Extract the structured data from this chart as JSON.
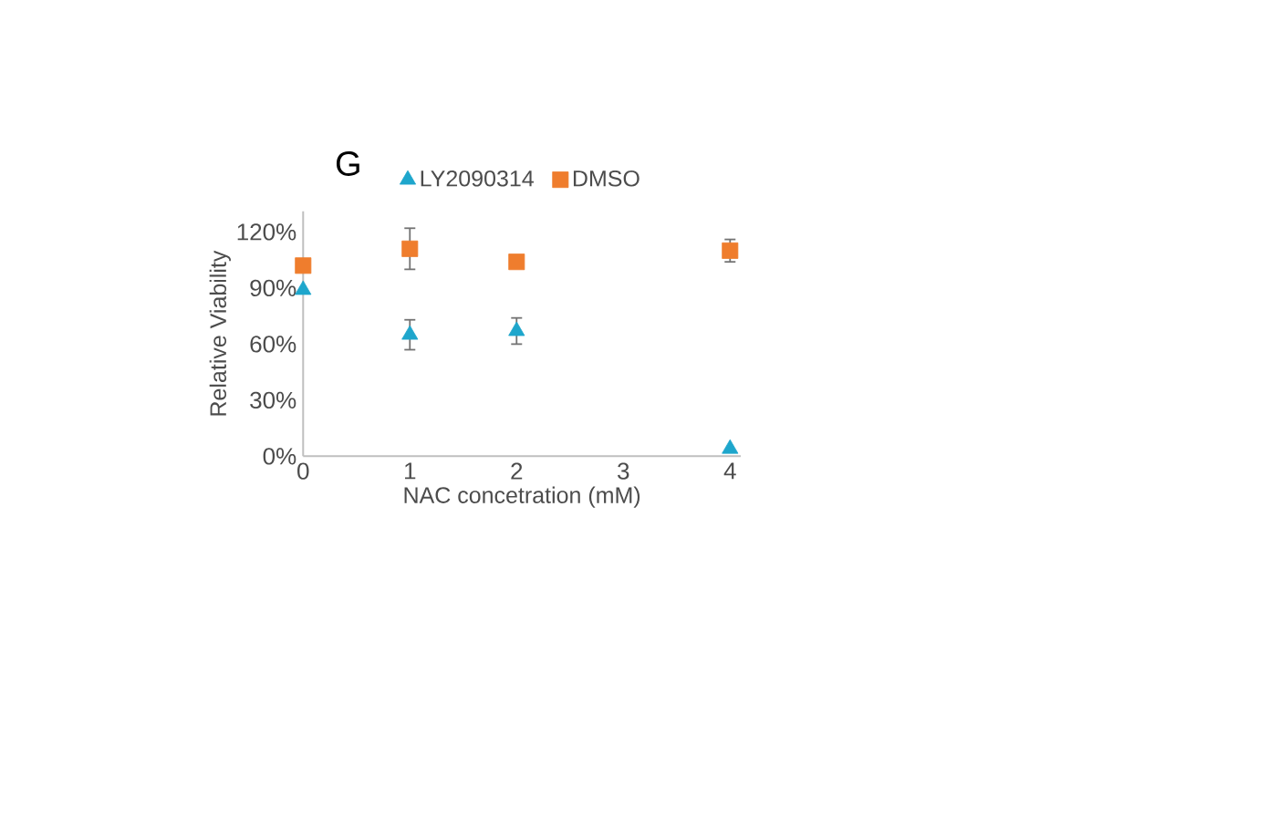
{
  "chart_data": {
    "type": "scatter",
    "annotations": [
      "G"
    ],
    "xlabel": "NAC concetration (mM)",
    "ylabel": "Relative Viability",
    "x": [
      0,
      1,
      2,
      4
    ],
    "series": [
      {
        "name": "LY2090314",
        "color": "#1ea6cc",
        "marker": "triangle",
        "values": [
          89,
          65,
          67,
          4
        ],
        "errors": [
          null,
          8,
          7,
          null
        ]
      },
      {
        "name": "DMSO",
        "color": "#ef7d2d",
        "marker": "square",
        "values": [
          102,
          111,
          104,
          110
        ],
        "errors": [
          null,
          11,
          null,
          6
        ]
      }
    ],
    "xlim": [
      0,
      4.1
    ],
    "xticks": [
      0,
      1,
      2,
      3,
      4
    ],
    "ylim": [
      0,
      131
    ],
    "yticks": [
      {
        "value": 0,
        "label": "0%"
      },
      {
        "value": 30,
        "label": "30%"
      },
      {
        "value": 60,
        "label": "60%"
      },
      {
        "value": 90,
        "label": "90%"
      },
      {
        "value": 120,
        "label": "120%"
      }
    ],
    "grid": false,
    "legend": "top"
  }
}
